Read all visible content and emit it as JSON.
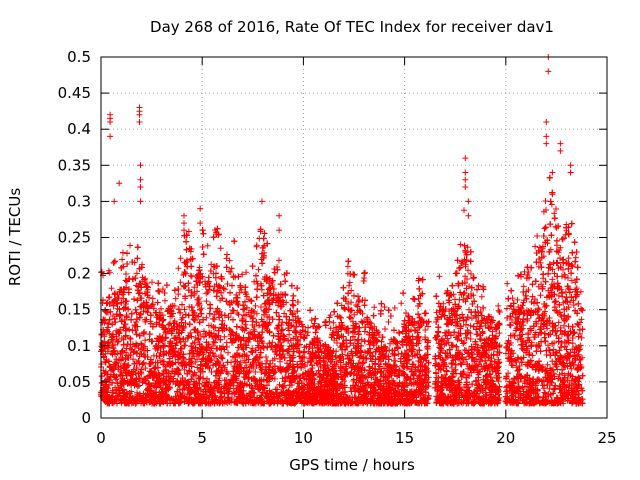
{
  "chart_data": {
    "type": "scatter",
    "title": "Day 268 of 2016, Rate Of TEC Index for receiver dav1",
    "xlabel": "GPS time / hours",
    "ylabel": "ROTI / TECUs",
    "xlim": [
      0,
      25
    ],
    "ylim": [
      0,
      0.5
    ],
    "xticks": [
      0,
      5,
      10,
      15,
      20,
      25
    ],
    "yticks": [
      0,
      0.05,
      0.1,
      0.15,
      0.2,
      0.25,
      0.3,
      0.35,
      0.4,
      0.45,
      0.5
    ],
    "xtick_labels": [
      "0",
      "5",
      "10",
      "15",
      "20",
      "25"
    ],
    "ytick_labels": [
      "0",
      "0.05",
      "0.1",
      "0.15",
      "0.2",
      "0.25",
      "0.3",
      "0.35",
      "0.4",
      "0.45",
      "0.5"
    ],
    "grid": true,
    "marker": "+",
    "color": "#ff0000",
    "envelope": {
      "x": [
        0.0,
        0.3,
        0.5,
        0.8,
        1.2,
        1.6,
        2.0,
        2.4,
        2.8,
        3.2,
        3.6,
        4.0,
        4.3,
        4.6,
        5.0,
        5.3,
        5.7,
        6.0,
        6.4,
        6.8,
        7.2,
        7.6,
        8.0,
        8.3,
        8.6,
        9.0,
        9.4,
        9.8,
        10.2,
        10.6,
        11.0,
        11.5,
        12.0,
        12.3,
        12.6,
        13.0,
        13.4,
        13.8,
        14.2,
        14.6,
        15.0,
        15.4,
        15.8,
        16.2,
        16.6,
        17.0,
        17.5,
        18.0,
        18.3,
        18.7,
        19.2,
        19.6,
        20.0,
        20.4,
        20.8,
        21.2,
        21.6,
        22.0,
        22.2,
        22.5,
        22.8,
        23.2,
        23.6,
        23.8
      ],
      "upper": [
        0.17,
        0.16,
        0.2,
        0.17,
        0.2,
        0.2,
        0.22,
        0.18,
        0.16,
        0.15,
        0.16,
        0.2,
        0.25,
        0.18,
        0.24,
        0.2,
        0.23,
        0.19,
        0.21,
        0.2,
        0.16,
        0.19,
        0.24,
        0.2,
        0.18,
        0.18,
        0.15,
        0.14,
        0.12,
        0.11,
        0.1,
        0.12,
        0.15,
        0.19,
        0.16,
        0.17,
        0.13,
        0.12,
        0.11,
        0.12,
        0.15,
        0.14,
        0.16,
        0.14,
        0.15,
        0.18,
        0.17,
        0.26,
        0.2,
        0.15,
        0.14,
        0.13,
        0.15,
        0.16,
        0.17,
        0.18,
        0.22,
        0.27,
        0.3,
        0.25,
        0.22,
        0.24,
        0.19,
        0.15
      ],
      "lower": [
        0.03,
        0.02,
        0.02,
        0.02,
        0.02,
        0.02,
        0.02,
        0.02,
        0.02,
        0.02,
        0.02,
        0.02,
        0.02,
        0.02,
        0.02,
        0.02,
        0.02,
        0.02,
        0.02,
        0.02,
        0.02,
        0.02,
        0.02,
        0.02,
        0.02,
        0.02,
        0.02,
        0.02,
        0.02,
        0.02,
        0.02,
        0.02,
        0.02,
        0.02,
        0.02,
        0.02,
        0.02,
        0.02,
        0.02,
        0.02,
        0.02,
        0.02,
        0.02,
        0.02,
        0.02,
        0.02,
        0.02,
        0.02,
        0.02,
        0.02,
        0.02,
        0.02,
        0.02,
        0.02,
        0.02,
        0.02,
        0.02,
        0.02,
        0.02,
        0.02,
        0.02,
        0.02,
        0.02,
        0.02
      ]
    },
    "gaps": [
      [
        16.2,
        16.5
      ],
      [
        19.7,
        20.0
      ]
    ],
    "spikes": [
      {
        "x": 0.45,
        "y": [
          0.39,
          0.41,
          0.415,
          0.42
        ]
      },
      {
        "x": 0.65,
        "y": [
          0.3
        ]
      },
      {
        "x": 0.9,
        "y": [
          0.325
        ]
      },
      {
        "x": 1.9,
        "y": [
          0.41,
          0.42,
          0.425,
          0.43
        ]
      },
      {
        "x": 1.95,
        "y": [
          0.3,
          0.32,
          0.35,
          0.33
        ]
      },
      {
        "x": 4.1,
        "y": [
          0.28,
          0.27,
          0.26
        ]
      },
      {
        "x": 4.9,
        "y": [
          0.29,
          0.27
        ]
      },
      {
        "x": 7.95,
        "y": [
          0.3
        ]
      },
      {
        "x": 8.8,
        "y": [
          0.28,
          0.26
        ]
      },
      {
        "x": 12.2,
        "y": [
          0.21,
          0.2
        ]
      },
      {
        "x": 18.0,
        "y": [
          0.33,
          0.34,
          0.36,
          0.32
        ]
      },
      {
        "x": 18.15,
        "y": [
          0.28,
          0.3
        ]
      },
      {
        "x": 22.0,
        "y": [
          0.38,
          0.39,
          0.41
        ]
      },
      {
        "x": 22.1,
        "y": [
          0.48,
          0.5
        ]
      },
      {
        "x": 22.3,
        "y": [
          0.31,
          0.34
        ]
      },
      {
        "x": 22.7,
        "y": [
          0.37,
          0.38
        ]
      },
      {
        "x": 23.2,
        "y": [
          0.34,
          0.35
        ]
      }
    ],
    "points_per_hour": 520
  }
}
